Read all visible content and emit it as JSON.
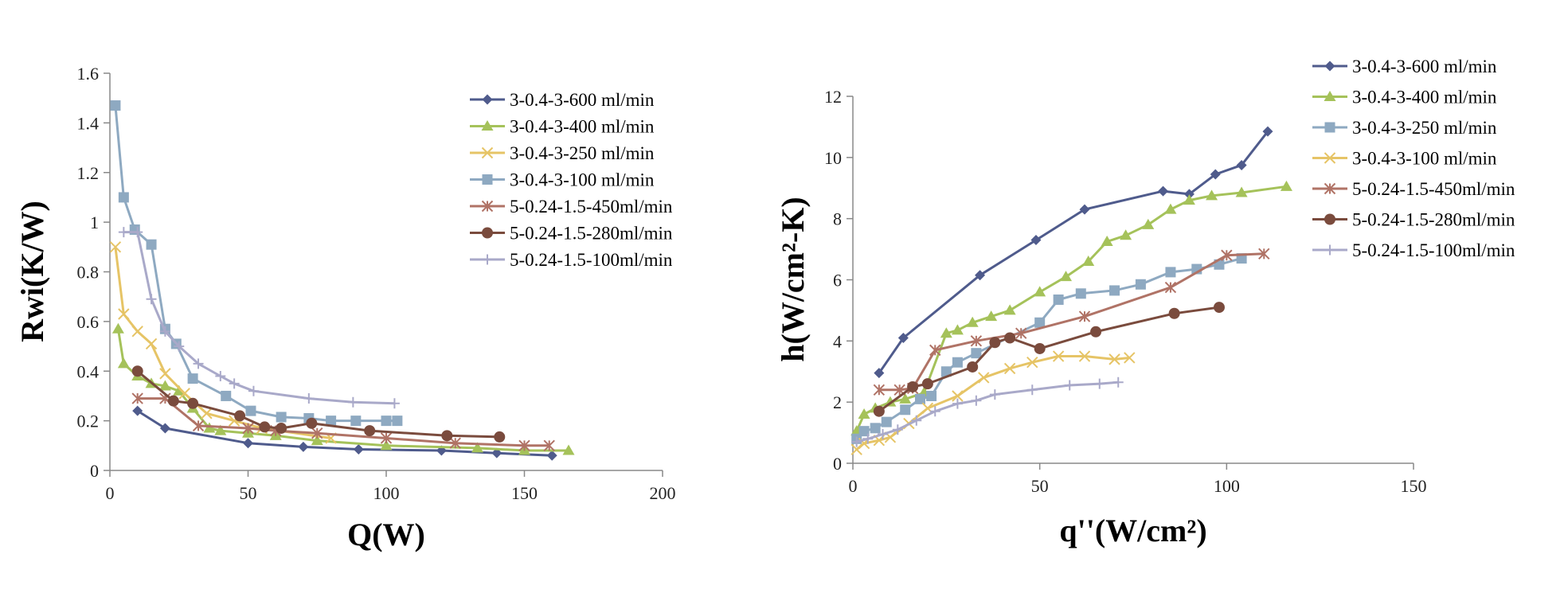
{
  "chart_data": [
    {
      "type": "line",
      "xlabel": "Q(W)",
      "ylabel": "Rwi(K/W)",
      "xlim": [
        0,
        200
      ],
      "ylim": [
        0,
        1.6
      ],
      "xticks": [
        "0",
        "50",
        "100",
        "150",
        "200"
      ],
      "yticks": [
        "0",
        "0.2",
        "0.4",
        "0.6",
        "0.8",
        "1",
        "1.2",
        "1.4",
        "1.6"
      ],
      "grid": false,
      "legend_position": "top-right",
      "series": [
        {
          "name": "3-0.4-3-600 ml/min",
          "color": "#4f5b8c",
          "marker": "diamond",
          "x": [
            10,
            20,
            50,
            70,
            90,
            120,
            140,
            160
          ],
          "y": [
            0.24,
            0.17,
            0.11,
            0.095,
            0.085,
            0.08,
            0.07,
            0.06
          ]
        },
        {
          "name": "3-0.4-3-400 ml/min",
          "color": "#a5c25a",
          "marker": "triangle",
          "x": [
            3,
            5,
            10,
            15,
            20,
            25,
            30,
            36,
            40,
            50,
            60,
            75,
            100,
            133,
            150,
            166
          ],
          "y": [
            0.57,
            0.43,
            0.38,
            0.35,
            0.34,
            0.32,
            0.25,
            0.17,
            0.16,
            0.15,
            0.14,
            0.12,
            0.1,
            0.09,
            0.08,
            0.08
          ]
        },
        {
          "name": "3-0.4-3-250 ml/min",
          "color": "#e6c466",
          "marker": "x",
          "x": [
            2,
            5,
            10,
            15,
            20,
            27,
            35,
            45,
            55,
            80
          ],
          "y": [
            0.9,
            0.63,
            0.56,
            0.51,
            0.39,
            0.31,
            0.23,
            0.2,
            0.17,
            0.13
          ]
        },
        {
          "name": "3-0.4-3-100 ml/min",
          "color": "#8ea9c1",
          "marker": "square",
          "x": [
            2,
            5,
            9,
            15,
            20,
            24,
            30,
            42,
            51,
            62,
            72,
            80,
            89,
            100,
            104
          ],
          "y": [
            1.47,
            1.1,
            0.97,
            0.91,
            0.57,
            0.51,
            0.37,
            0.3,
            0.24,
            0.215,
            0.21,
            0.2,
            0.2,
            0.2,
            0.2
          ]
        },
        {
          "name": "5-0.24-1.5-450ml/min",
          "color": "#b07366",
          "marker": "asterisk",
          "x": [
            10,
            20,
            32,
            50,
            60,
            75,
            100,
            125,
            150,
            159
          ],
          "y": [
            0.29,
            0.29,
            0.18,
            0.17,
            0.16,
            0.15,
            0.13,
            0.11,
            0.1,
            0.1
          ]
        },
        {
          "name": "5-0.24-1.5-280ml/min",
          "color": "#7a4b3d",
          "marker": "circle",
          "x": [
            10,
            23,
            30,
            47,
            56,
            62,
            73,
            94,
            122,
            141
          ],
          "y": [
            0.4,
            0.28,
            0.27,
            0.22,
            0.175,
            0.17,
            0.19,
            0.16,
            0.14,
            0.135
          ]
        },
        {
          "name": "5-0.24-1.5-100ml/min",
          "color": "#a9a9c9",
          "marker": "plus",
          "x": [
            5,
            10,
            15,
            20,
            25,
            32,
            40,
            45,
            52,
            72,
            88,
            103
          ],
          "y": [
            0.96,
            0.96,
            0.69,
            0.56,
            0.5,
            0.43,
            0.38,
            0.35,
            0.32,
            0.29,
            0.275,
            0.27
          ]
        }
      ]
    },
    {
      "type": "line",
      "xlabel": "q''(W/cm²)",
      "ylabel": "h(W/cm²-K)",
      "xlim": [
        0,
        150
      ],
      "ylim": [
        0,
        12
      ],
      "xticks": [
        "0",
        "50",
        "100",
        "150"
      ],
      "yticks": [
        "0",
        "2",
        "4",
        "6",
        "8",
        "10",
        "12"
      ],
      "grid": false,
      "legend_position": "top-right",
      "series": [
        {
          "name": "3-0.4-3-600 ml/min",
          "color": "#4f5b8c",
          "marker": "diamond",
          "x": [
            7,
            13.5,
            34,
            49,
            62,
            83,
            90,
            97,
            104,
            111
          ],
          "y": [
            2.95,
            4.1,
            6.15,
            7.3,
            8.3,
            8.9,
            8.8,
            9.45,
            9.75,
            10.85
          ]
        },
        {
          "name": "3-0.4-3-400 ml/min",
          "color": "#a5c25a",
          "marker": "triangle",
          "x": [
            1,
            3,
            6,
            10,
            14,
            19,
            25,
            28,
            32,
            37,
            42,
            50,
            57,
            63,
            68,
            73,
            79,
            85,
            90,
            96,
            104,
            116
          ],
          "y": [
            1.05,
            1.6,
            1.8,
            2.0,
            2.1,
            2.3,
            4.25,
            4.35,
            4.6,
            4.8,
            5.0,
            5.6,
            6.1,
            6.6,
            7.25,
            7.45,
            7.8,
            8.3,
            8.6,
            8.75,
            8.85,
            9.05
          ]
        },
        {
          "name": "3-0.4-3-250 ml/min",
          "color": "#8ea9c1",
          "marker": "square",
          "x": [
            1,
            3,
            6,
            9,
            14,
            18,
            21,
            25,
            28,
            33,
            50,
            55,
            61,
            70,
            77,
            85,
            92,
            98,
            104
          ],
          "y": [
            0.8,
            1.05,
            1.15,
            1.35,
            1.75,
            2.1,
            2.2,
            3.0,
            3.3,
            3.6,
            4.6,
            5.35,
            5.55,
            5.65,
            5.85,
            6.25,
            6.35,
            6.5,
            6.7
          ]
        },
        {
          "name": "3-0.4-3-100 ml/min",
          "color": "#e6c466",
          "marker": "x",
          "x": [
            1,
            3,
            7,
            10,
            15,
            20,
            28,
            35,
            42,
            48,
            55,
            62,
            70,
            74
          ],
          "y": [
            0.45,
            0.65,
            0.75,
            0.85,
            1.3,
            1.8,
            2.2,
            2.8,
            3.1,
            3.3,
            3.5,
            3.5,
            3.4,
            3.45
          ]
        },
        {
          "name": "5-0.24-1.5-450ml/min",
          "color": "#b07366",
          "marker": "asterisk",
          "x": [
            7,
            12.5,
            16,
            22,
            33,
            45,
            62,
            85,
            100,
            110
          ],
          "y": [
            2.4,
            2.4,
            2.45,
            3.7,
            4.0,
            4.25,
            4.8,
            5.75,
            6.8,
            6.85
          ]
        },
        {
          "name": "5-0.24-1.5-280ml/min",
          "color": "#7a4b3d",
          "marker": "circle",
          "x": [
            7,
            16,
            20,
            32,
            38,
            42,
            50,
            65,
            86,
            98
          ],
          "y": [
            1.7,
            2.5,
            2.6,
            3.15,
            3.95,
            4.1,
            3.75,
            4.3,
            4.9,
            5.1
          ]
        },
        {
          "name": "5-0.24-1.5-100ml/min",
          "color": "#a9a9c9",
          "marker": "plus",
          "x": [
            1,
            4,
            8,
            12,
            17,
            22,
            28,
            33,
            38,
            48,
            58,
            66,
            71
          ],
          "y": [
            0.7,
            0.8,
            0.95,
            1.1,
            1.4,
            1.7,
            1.95,
            2.05,
            2.25,
            2.4,
            2.55,
            2.6,
            2.65
          ]
        }
      ]
    }
  ]
}
